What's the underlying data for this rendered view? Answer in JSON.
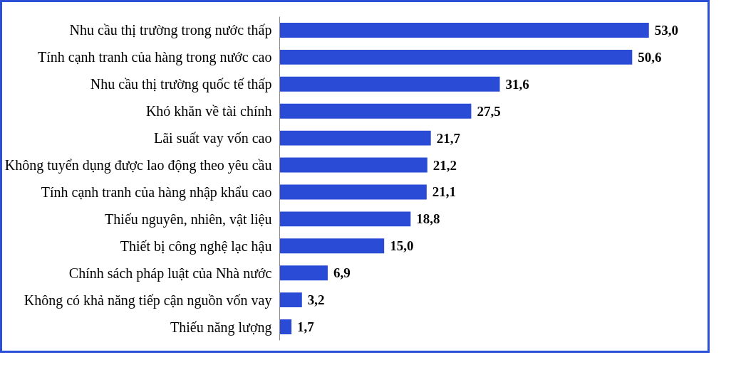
{
  "chart_data": {
    "type": "bar",
    "orientation": "horizontal",
    "categories": [
      "Nhu cầu thị trường trong nước thấp",
      "Tính cạnh tranh của hàng trong nước cao",
      "Nhu cầu thị trường quốc tế thấp",
      "Khó khăn về tài chính",
      "Lãi suất vay vốn cao",
      "Không tuyển dụng được lao động theo yêu cầu",
      "Tính cạnh tranh của hàng nhập khẩu cao",
      "Thiếu nguyên, nhiên, vật liệu",
      "Thiết bị công nghệ lạc hậu",
      "Chính sách pháp luật của Nhà nước",
      "Không có khả năng tiếp cận nguồn vốn vay",
      "Thiếu năng lượng"
    ],
    "values": [
      53.0,
      50.6,
      31.6,
      27.5,
      21.7,
      21.2,
      21.1,
      18.8,
      15.0,
      6.9,
      3.2,
      1.7
    ],
    "value_labels": [
      "53,0",
      "50,6",
      "31,6",
      "27,5",
      "21,7",
      "21,2",
      "21,1",
      "18,8",
      "15,0",
      "6,9",
      "3,2",
      "1,7"
    ],
    "color": "#2a4bd6",
    "grid": false
  }
}
